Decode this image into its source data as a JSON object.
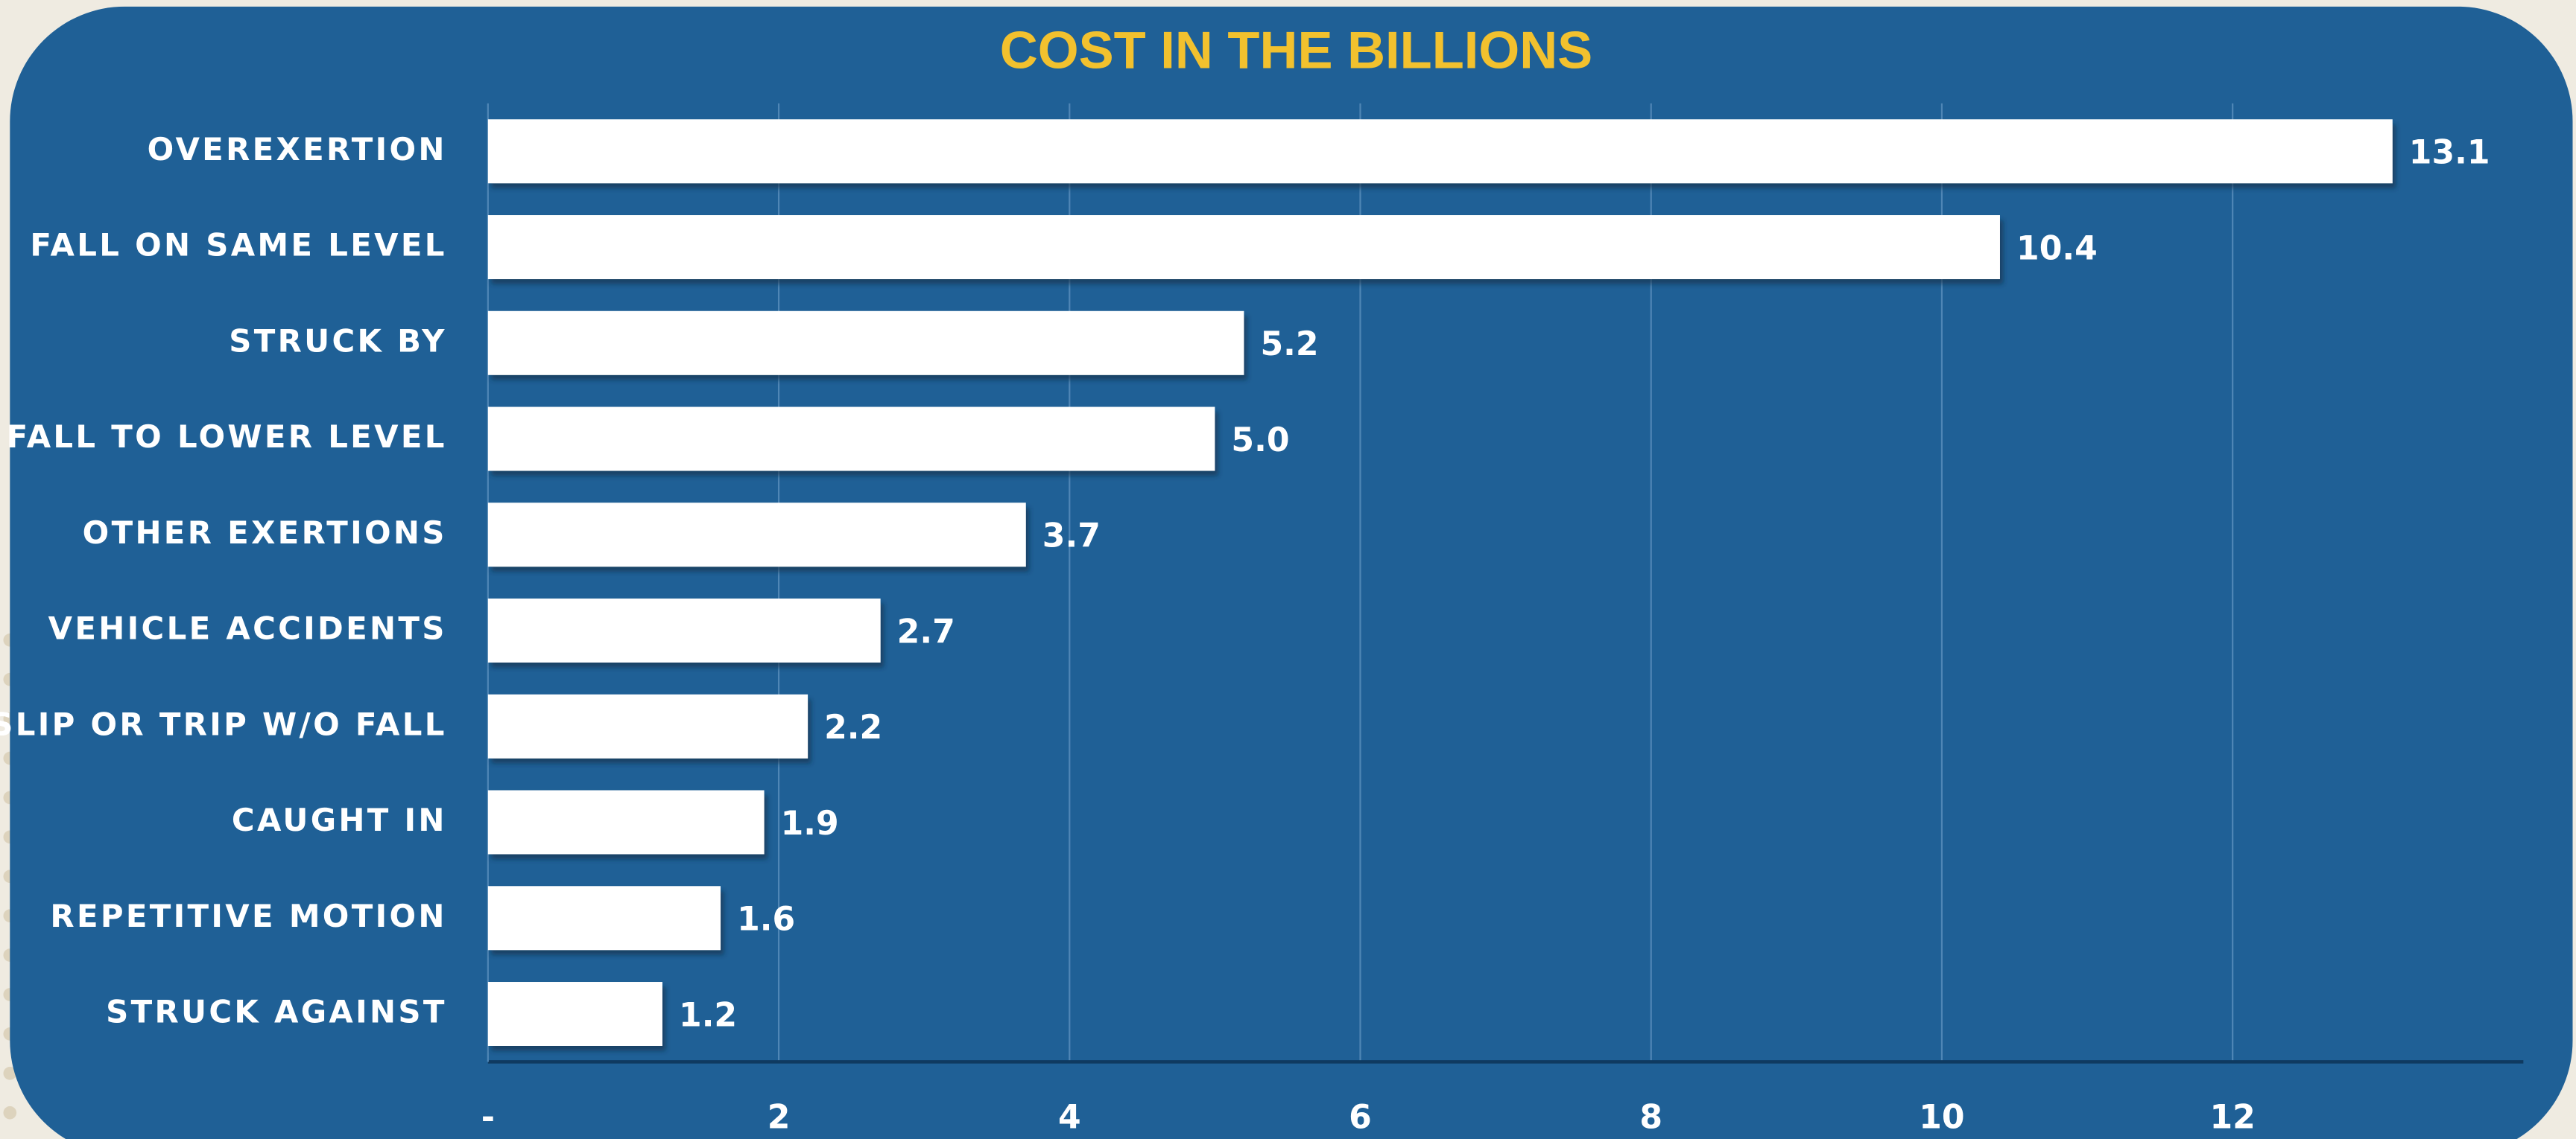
{
  "chart_data": {
    "type": "bar",
    "orientation": "horizontal",
    "title": "COST IN THE BILLIONS",
    "categories": [
      "OVEREXERTION",
      "FALL ON SAME LEVEL",
      "STRUCK BY",
      "FALL TO LOWER LEVEL",
      "OTHER EXERTIONS",
      "VEHICLE ACCIDENTS",
      "SLIP OR TRIP W/O FALL",
      "CAUGHT IN",
      "REPETITIVE MOTION",
      "STRUCK AGAINST"
    ],
    "values": [
      13.1,
      10.4,
      5.2,
      5.0,
      3.7,
      2.7,
      2.2,
      1.9,
      1.6,
      1.2
    ],
    "value_labels": [
      "13.1",
      "10.4",
      "5.2",
      "5.0",
      "3.7",
      "2.7",
      "2.2",
      "1.9",
      "1.6",
      "1.2"
    ],
    "color": "#ffffff",
    "xlim": [
      0,
      14
    ],
    "xticks": [
      {
        "value": 0,
        "label": "-"
      },
      2,
      4,
      6,
      8,
      10,
      12
    ],
    "grid": true
  }
}
